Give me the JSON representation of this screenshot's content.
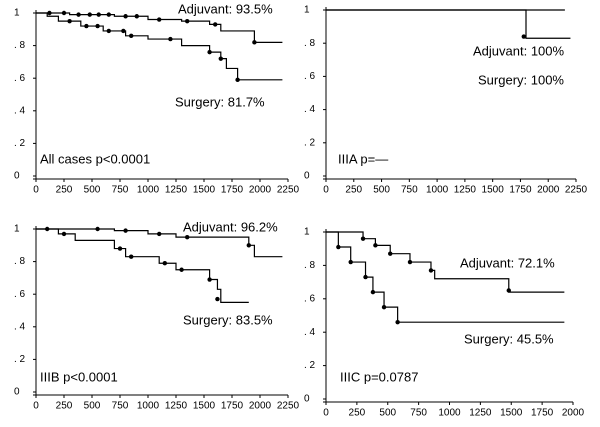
{
  "chart_data": [
    {
      "type": "step",
      "annotation": "All cases p<0.0001",
      "xlim": [
        0,
        2250
      ],
      "xticks": [
        0,
        250,
        500,
        750,
        1000,
        1250,
        1500,
        1750,
        2000,
        2250
      ],
      "ylim": [
        0,
        1
      ],
      "yticks": [
        0,
        {
          "value": 0.2,
          "label": ". 2"
        },
        {
          "value": 0.4,
          "label": ". 4"
        },
        {
          "value": 0.6,
          "label": ". 6"
        },
        {
          "value": 0.8,
          "label": ". 8"
        },
        1
      ],
      "series": [
        {
          "name": "Adjuvant: 93.5%",
          "color": "#000000",
          "x": [
            0,
            300,
            700,
            1000,
            1300,
            1550,
            1650,
            1950,
            2200
          ],
          "values": [
            1,
            0.99,
            0.98,
            0.96,
            0.95,
            0.93,
            0.89,
            0.82,
            0.82
          ],
          "censored": {
            "x": [
              120,
              250,
              380,
              480,
              560,
              650,
              800,
              900,
              1100,
              1350,
              1600,
              1950
            ],
            "values": [
              1,
              1,
              0.99,
              0.99,
              0.99,
              0.99,
              0.98,
              0.98,
              0.96,
              0.95,
              0.93,
              0.82
            ]
          }
        },
        {
          "name": "Surgery: 81.7%",
          "color": "#000000",
          "x": [
            0,
            100,
            200,
            400,
            600,
            800,
            1000,
            1300,
            1550,
            1650,
            1700,
            1800,
            2200
          ],
          "values": [
            1,
            0.98,
            0.95,
            0.92,
            0.89,
            0.86,
            0.84,
            0.8,
            0.76,
            0.72,
            0.66,
            0.59,
            0.59
          ],
          "censored": {
            "x": [
              300,
              450,
              550,
              650,
              780,
              850,
              1200,
              1550,
              1650,
              1800
            ],
            "values": [
              0.95,
              0.92,
              0.92,
              0.89,
              0.89,
              0.86,
              0.84,
              0.76,
              0.72,
              0.59
            ]
          }
        }
      ]
    },
    {
      "type": "step",
      "annotation": "IIIA p=—",
      "xlim": [
        0,
        2250
      ],
      "xticks": [
        0,
        250,
        500,
        750,
        1000,
        1250,
        1500,
        1750,
        2000,
        2250
      ],
      "ylim": [
        0,
        1
      ],
      "yticks": [
        0,
        {
          "value": 0.2,
          "label": ". 2"
        },
        {
          "value": 0.4,
          "label": ". 4"
        },
        {
          "value": 0.6,
          "label": ". 6"
        },
        {
          "value": 0.8,
          "label": ". 8"
        },
        1
      ],
      "series": [
        {
          "name": "Adjuvant: 100%",
          "color": "#000000",
          "x": [
            0,
            2150
          ],
          "values": [
            1,
            1
          ],
          "censored": {
            "x": [],
            "values": []
          }
        },
        {
          "name": "Surgery: 100%",
          "color": "#000000",
          "x": [
            0,
            1800,
            2200
          ],
          "values": [
            1,
            0.83,
            0.83
          ],
          "censored": {
            "x": [
              1780
            ],
            "values": [
              0.84
            ]
          }
        }
      ]
    },
    {
      "type": "step",
      "annotation": "IIIB p<0.0001",
      "xlim": [
        0,
        2250
      ],
      "xticks": [
        0,
        250,
        500,
        750,
        1000,
        1250,
        1500,
        1750,
        2000,
        2250
      ],
      "ylim": [
        0,
        1
      ],
      "yticks": [
        0,
        {
          "value": 0.2,
          "label": ". 2"
        },
        {
          "value": 0.4,
          "label": ". 4"
        },
        {
          "value": 0.6,
          "label": ". 6"
        },
        {
          "value": 0.8,
          "label": ". 8"
        },
        1
      ],
      "series": [
        {
          "name": "Adjuvant: 96.2%",
          "color": "#000000",
          "x": [
            0,
            700,
            1000,
            1250,
            1900,
            1950,
            2200
          ],
          "values": [
            1,
            0.99,
            0.97,
            0.95,
            0.9,
            0.83,
            0.83
          ],
          "censored": {
            "x": [
              100,
              550,
              800,
              1100,
              1350,
              1900
            ],
            "values": [
              1,
              1,
              0.99,
              0.97,
              0.95,
              0.9
            ]
          }
        },
        {
          "name": "Surgery: 83.5%",
          "color": "#000000",
          "x": [
            0,
            200,
            350,
            700,
            800,
            1100,
            1250,
            1550,
            1620,
            1650,
            1900
          ],
          "values": [
            1,
            0.97,
            0.93,
            0.88,
            0.83,
            0.79,
            0.75,
            0.69,
            0.63,
            0.55,
            0.55
          ],
          "censored": {
            "x": [
              250,
              750,
              850,
              1150,
              1300,
              1550,
              1620
            ],
            "values": [
              0.97,
              0.88,
              0.83,
              0.79,
              0.75,
              0.69,
              0.57
            ]
          }
        }
      ]
    },
    {
      "type": "step",
      "annotation": "IIIC p=0.0787",
      "xlim": [
        0,
        2000
      ],
      "xticks": [
        0,
        250,
        500,
        750,
        1000,
        1250,
        1500,
        1750,
        2000
      ],
      "ylim": [
        0,
        1
      ],
      "yticks": [
        0,
        {
          "value": 0.2,
          "label": ". 2"
        },
        {
          "value": 0.4,
          "label": ". 4"
        },
        {
          "value": 0.6,
          "label": ". 6"
        },
        {
          "value": 0.8,
          "label": ". 8"
        },
        1
      ],
      "series": [
        {
          "name": "Adjuvant: 72.1%",
          "color": "#000000",
          "x": [
            0,
            300,
            400,
            520,
            680,
            850,
            880,
            1480,
            1930
          ],
          "values": [
            1,
            0.96,
            0.92,
            0.87,
            0.82,
            0.77,
            0.72,
            0.64,
            0.64
          ],
          "censored": {
            "x": [
              300,
              400,
              520,
              680,
              850,
              1480
            ],
            "values": [
              0.96,
              0.92,
              0.87,
              0.82,
              0.77,
              0.65
            ]
          }
        },
        {
          "name": "Surgery: 45.5%",
          "color": "#000000",
          "x": [
            0,
            100,
            200,
            320,
            380,
            470,
            580,
            1930
          ],
          "values": [
            1,
            0.91,
            0.82,
            0.73,
            0.64,
            0.55,
            0.46,
            0.46
          ],
          "censored": {
            "x": [
              100,
              200,
              320,
              380,
              470,
              580
            ],
            "values": [
              0.91,
              0.82,
              0.73,
              0.64,
              0.55,
              0.46
            ]
          }
        }
      ]
    }
  ]
}
